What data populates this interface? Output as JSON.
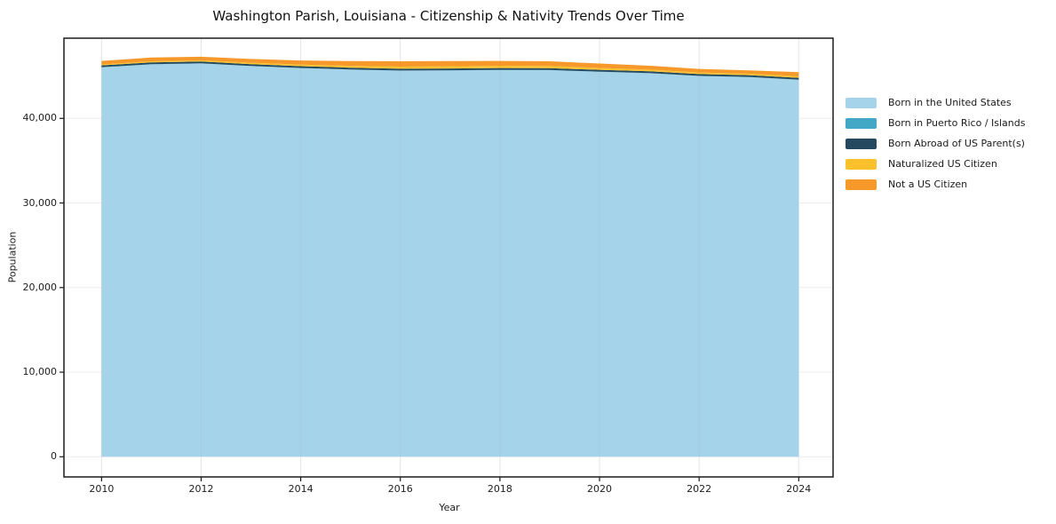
{
  "title": "Washington Parish, Louisiana - Citizenship & Nativity Trends Over Time",
  "chart_data": {
    "type": "area",
    "stacked": true,
    "title": "Washington Parish, Louisiana - Citizenship & Nativity Trends Over Time",
    "xlabel": "Year",
    "ylabel": "Population",
    "x": [
      2010,
      2011,
      2012,
      2013,
      2014,
      2015,
      2016,
      2017,
      2018,
      2019,
      2020,
      2021,
      2022,
      2023,
      2024
    ],
    "series": [
      {
        "name": "Born in the United States",
        "color": "#a5d3e9",
        "values": [
          46030,
          46380,
          46490,
          46180,
          45940,
          45760,
          45640,
          45660,
          45710,
          45700,
          45500,
          45330,
          45010,
          44870,
          44560
        ]
      },
      {
        "name": "Born in Puerto Rico / Islands",
        "color": "#43a7c6",
        "values": [
          25,
          25,
          25,
          25,
          25,
          25,
          25,
          25,
          25,
          25,
          25,
          25,
          25,
          25,
          25
        ]
      },
      {
        "name": "Born Abroad of US Parent(s)",
        "color": "#25495e",
        "values": [
          210,
          210,
          210,
          210,
          210,
          210,
          210,
          210,
          210,
          210,
          210,
          210,
          210,
          210,
          210
        ]
      },
      {
        "name": "Naturalized US Citizen",
        "color": "#fbc12c",
        "values": [
          110,
          130,
          140,
          160,
          180,
          220,
          240,
          260,
          280,
          260,
          230,
          200,
          180,
          170,
          180
        ]
      },
      {
        "name": "Not a US Citizen",
        "color": "#f7992a",
        "values": [
          420,
          445,
          425,
          445,
          485,
          565,
          635,
          615,
          565,
          555,
          525,
          455,
          425,
          405,
          495
        ]
      }
    ],
    "xticks": [
      2010,
      2012,
      2014,
      2016,
      2018,
      2020,
      2022,
      2024
    ],
    "xtick_labels": [
      "2010",
      "2012",
      "2014",
      "2016",
      "2018",
      "2020",
      "2022",
      "2024"
    ],
    "yticks": [
      0,
      10000,
      20000,
      30000,
      40000
    ],
    "ytick_labels": [
      "0",
      "10,000",
      "20,000",
      "30,000",
      "40,000"
    ],
    "xlim": [
      2009.245,
      2024.69
    ],
    "ylim": [
      -2383,
      49480
    ],
    "grid": true,
    "legend_position": "right",
    "colors": {
      "grid": "#ececec",
      "frame": "#1b1b1b",
      "background": "#ffffff"
    }
  }
}
